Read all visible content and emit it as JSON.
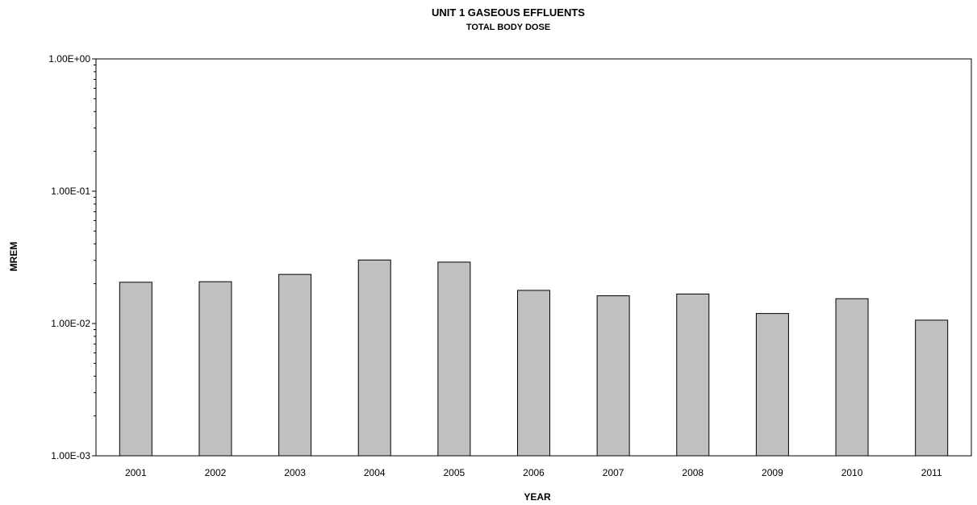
{
  "chart_data": {
    "type": "bar",
    "title": "UNIT 1 GASEOUS EFFLUENTS",
    "subtitle": "TOTAL BODY DOSE",
    "xlabel": "YEAR",
    "ylabel": "MREM",
    "y_scale": "log",
    "ylim": [
      0.001,
      1
    ],
    "y_tick_labels": [
      "1.00E-03",
      "1.00E-02",
      "1.00E-01",
      "1.00E+00"
    ],
    "categories": [
      "2001",
      "2002",
      "2003",
      "2004",
      "2005",
      "2006",
      "2007",
      "2008",
      "2009",
      "2010",
      "2011"
    ],
    "values": [
      0.0205,
      0.0207,
      0.0235,
      0.0302,
      0.0291,
      0.0178,
      0.0162,
      0.0167,
      0.0119,
      0.0154,
      0.0106
    ],
    "bar_color": "#c0c0c0",
    "grid": false,
    "legend": "none"
  }
}
